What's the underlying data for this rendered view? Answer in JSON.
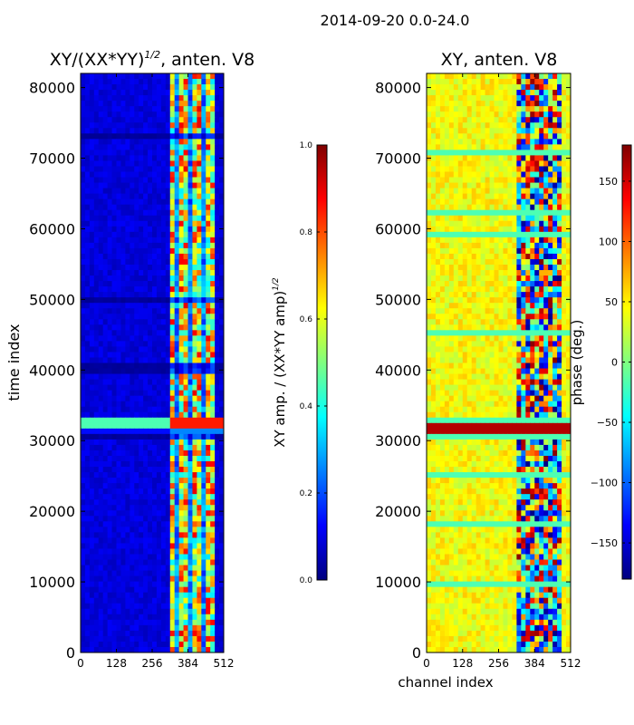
{
  "figure": {
    "suptitle": "2014-09-20 0.0-24.0",
    "shared_xlabel": "channel index"
  },
  "chart_data": [
    {
      "type": "heatmap",
      "title": "XY/(XX*YY)",
      "title_exponent": "1/2",
      "title_suffix": ", anten. V8",
      "xlabel": "",
      "ylabel": "time index",
      "xlim": [
        0,
        512
      ],
      "ylim": [
        0,
        82000
      ],
      "xticks": [
        0,
        128,
        256,
        384,
        512
      ],
      "yticks": [
        0,
        10000,
        20000,
        30000,
        40000,
        50000,
        60000,
        70000,
        80000
      ],
      "colormap": "jet",
      "colorbar": {
        "label": "XY amp. / (XX*YY amp)",
        "label_exponent": "1/2",
        "range": [
          0.0,
          1.0
        ],
        "ticks": [
          "0.0",
          "0.2",
          "0.4",
          "0.6",
          "0.8",
          "1.0"
        ]
      },
      "notes": "Low values (~0.05) for channels 0-320; high, striped values (0.3-0.9) for channels ~320-480; bright horizontal band near time index 32000."
    },
    {
      "type": "heatmap",
      "title": "XY, anten. V8",
      "xlabel": "channel index",
      "ylabel": "",
      "xlim": [
        0,
        512
      ],
      "ylim": [
        0,
        82000
      ],
      "xticks": [
        0,
        128,
        256,
        384,
        512
      ],
      "yticks": [
        0,
        10000,
        20000,
        30000,
        40000,
        50000,
        60000,
        70000,
        80000
      ],
      "colormap": "jet",
      "colorbar": {
        "label": "phase (deg.)",
        "range": [
          -180,
          180
        ],
        "ticks": [
          "−150",
          "−100",
          "−50",
          "0",
          "50",
          "100",
          "150"
        ],
        "tick_values": [
          -150,
          -100,
          -50,
          0,
          50,
          100,
          150
        ]
      },
      "notes": "Phase mostly ~30-60 deg (yellow-green) for channels 0-320; strongly varying (-180 to 180) for channels ~320-480; dark-red band near time index 32000."
    }
  ]
}
